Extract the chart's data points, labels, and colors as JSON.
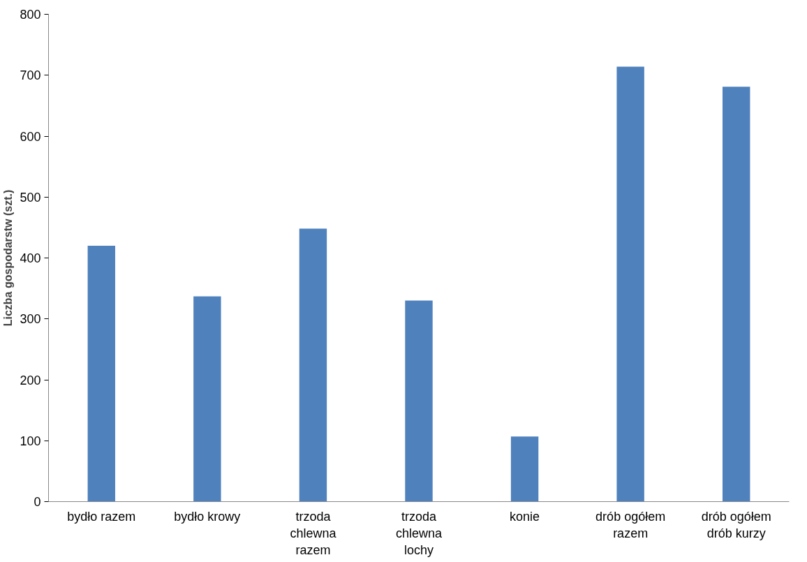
{
  "chart_data": {
    "type": "bar",
    "ylabel": "Liczba gospodarstw (szt.)",
    "categories": [
      "bydło razem",
      "bydło krowy",
      "trzoda chlewna razem",
      "trzoda chlewna lochy",
      "konie",
      "drób ogółem razem",
      "drób ogółem drób kurzy"
    ],
    "values": [
      420,
      337,
      448,
      330,
      107,
      714,
      681
    ],
    "color": "#4f81bd",
    "ylim": [
      0,
      800
    ],
    "yticks": [
      0,
      100,
      200,
      300,
      400,
      500,
      600,
      700,
      800
    ],
    "grid": false
  }
}
